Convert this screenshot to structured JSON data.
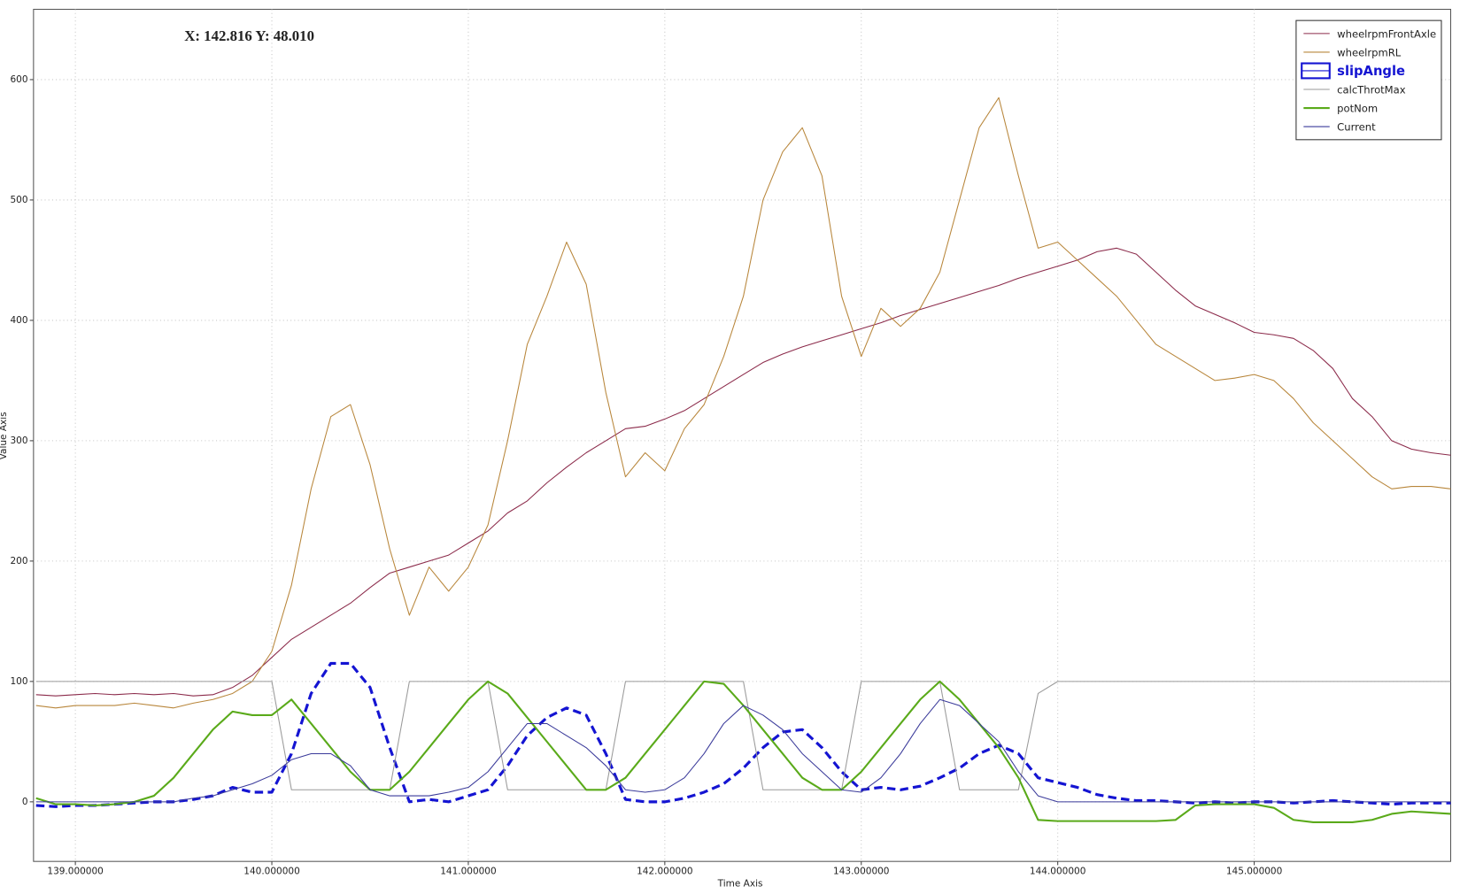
{
  "chart_data": {
    "type": "line",
    "annotation": "X: 142.816 Y: 48.010",
    "x_label": "Time Axis",
    "y_label": "Value Axis",
    "xlim": [
      138.787,
      146.0
    ],
    "ylim": [
      -49.5,
      658.4
    ],
    "xticks": [
      {
        "value": 139,
        "label": "139.000000"
      },
      {
        "value": 140,
        "label": "140.000000"
      },
      {
        "value": 141,
        "label": "141.000000"
      },
      {
        "value": 142,
        "label": "142.000000"
      },
      {
        "value": 143,
        "label": "143.000000"
      },
      {
        "value": 144,
        "label": "144.000000"
      },
      {
        "value": 145,
        "label": "145.000000"
      }
    ],
    "yticks": [
      0,
      100,
      200,
      300,
      400,
      500,
      600
    ],
    "grid": true,
    "legend": "upper right",
    "x": [
      138.8,
      138.9,
      139.0,
      139.1,
      139.2,
      139.3,
      139.4,
      139.5,
      139.6,
      139.7,
      139.8,
      139.9,
      140.0,
      140.1,
      140.2,
      140.3,
      140.4,
      140.5,
      140.6,
      140.7,
      140.8,
      140.9,
      141.0,
      141.1,
      141.2,
      141.3,
      141.4,
      141.5,
      141.6,
      141.7,
      141.8,
      141.9,
      142.0,
      142.1,
      142.2,
      142.3,
      142.4,
      142.5,
      142.6,
      142.7,
      142.8,
      142.9,
      143.0,
      143.1,
      143.2,
      143.3,
      143.4,
      143.5,
      143.6,
      143.7,
      143.8,
      143.9,
      144.0,
      144.1,
      144.2,
      144.3,
      144.4,
      144.5,
      144.6,
      144.7,
      144.8,
      144.9,
      145.0,
      145.1,
      145.2,
      145.3,
      145.4,
      145.5,
      145.6,
      145.7,
      145.8,
      145.9,
      146.0
    ],
    "series": [
      {
        "name": "wheelrpmFrontAxle",
        "color": "#8b2a4a",
        "line_width": 1,
        "values": [
          89,
          88,
          89,
          90,
          89,
          90,
          89,
          90,
          88,
          89,
          95,
          105,
          120,
          135,
          145,
          155,
          165,
          178,
          190,
          195,
          200,
          205,
          215,
          225,
          240,
          250,
          265,
          278,
          290,
          300,
          310,
          312,
          318,
          325,
          335,
          345,
          355,
          365,
          372,
          378,
          383,
          388,
          393,
          398,
          404,
          409,
          414,
          419,
          424,
          429,
          435,
          440,
          445,
          450,
          457,
          460,
          455,
          440,
          425,
          412,
          405,
          398,
          390,
          388,
          385,
          375,
          360,
          335,
          320,
          300,
          293,
          290,
          288
        ]
      },
      {
        "name": "wheelrpmRL",
        "color": "#b8863b",
        "line_width": 1,
        "values": [
          80,
          78,
          80,
          80,
          80,
          82,
          80,
          78,
          82,
          85,
          90,
          100,
          125,
          180,
          260,
          320,
          330,
          280,
          210,
          155,
          195,
          175,
          195,
          230,
          300,
          380,
          420,
          465,
          430,
          340,
          270,
          290,
          275,
          310,
          330,
          370,
          420,
          500,
          540,
          560,
          520,
          420,
          370,
          410,
          395,
          410,
          440,
          500,
          560,
          585,
          520,
          460,
          465,
          450,
          435,
          420,
          400,
          380,
          370,
          360,
          350,
          352,
          355,
          350,
          335,
          315,
          300,
          285,
          270,
          260,
          262,
          262,
          260
        ]
      },
      {
        "name": "slipAngle",
        "color": "#1414d2",
        "line_width": 3,
        "dashed": true,
        "highlighted": true,
        "values": [
          -3,
          -4,
          -3,
          -3,
          -2,
          -1,
          0,
          0,
          2,
          5,
          12,
          8,
          8,
          40,
          90,
          115,
          115,
          95,
          45,
          0,
          2,
          0,
          5,
          10,
          30,
          55,
          70,
          78,
          72,
          40,
          2,
          0,
          0,
          3,
          8,
          15,
          28,
          45,
          58,
          60,
          45,
          25,
          10,
          12,
          10,
          13,
          20,
          28,
          40,
          47,
          40,
          20,
          16,
          12,
          6,
          3,
          1,
          1,
          0,
          -1,
          0,
          -1,
          0,
          0,
          -1,
          0,
          1,
          0,
          -1,
          -2,
          -1,
          -1,
          -1
        ]
      },
      {
        "name": "calcThrotMax",
        "color": "#9a9a9a",
        "line_width": 1,
        "values": [
          100,
          100,
          100,
          100,
          100,
          100,
          100,
          100,
          100,
          100,
          100,
          100,
          100,
          10,
          10,
          10,
          10,
          10,
          10,
          100,
          100,
          100,
          100,
          100,
          10,
          10,
          10,
          10,
          10,
          10,
          100,
          100,
          100,
          100,
          100,
          100,
          100,
          10,
          10,
          10,
          10,
          10,
          100,
          100,
          100,
          100,
          100,
          10,
          10,
          10,
          10,
          90,
          100,
          100,
          100,
          100,
          100,
          100,
          100,
          100,
          100,
          100,
          100,
          100,
          100,
          100,
          100,
          100,
          100,
          100,
          100,
          100,
          100
        ]
      },
      {
        "name": "potNom",
        "color": "#5aaa1a",
        "line_width": 2,
        "values": [
          3,
          -2,
          -2,
          -3,
          -2,
          0,
          5,
          20,
          40,
          60,
          75,
          72,
          72,
          85,
          65,
          45,
          25,
          10,
          10,
          25,
          45,
          65,
          85,
          100,
          90,
          70,
          50,
          30,
          10,
          10,
          20,
          40,
          60,
          80,
          100,
          98,
          80,
          60,
          40,
          20,
          10,
          10,
          25,
          45,
          65,
          85,
          100,
          85,
          65,
          45,
          20,
          -15,
          -16,
          -16,
          -16,
          -16,
          -16,
          -16,
          -15,
          -3,
          -2,
          -2,
          -2,
          -5,
          -15,
          -17,
          -17,
          -17,
          -15,
          -10,
          -8,
          -9,
          -10
        ]
      },
      {
        "name": "Current",
        "color": "#3a3a9a",
        "line_width": 1,
        "values": [
          0,
          0,
          0,
          0,
          0,
          0,
          0,
          0,
          3,
          5,
          10,
          15,
          22,
          35,
          40,
          40,
          30,
          10,
          5,
          5,
          5,
          8,
          12,
          25,
          45,
          65,
          65,
          55,
          45,
          30,
          10,
          8,
          10,
          20,
          40,
          65,
          80,
          72,
          60,
          40,
          25,
          10,
          8,
          20,
          40,
          65,
          85,
          80,
          65,
          50,
          25,
          5,
          0,
          0,
          0,
          0,
          0,
          0,
          0,
          0,
          0,
          0,
          0,
          0,
          0,
          0,
          0,
          0,
          0,
          0,
          0,
          0,
          0
        ]
      }
    ]
  }
}
